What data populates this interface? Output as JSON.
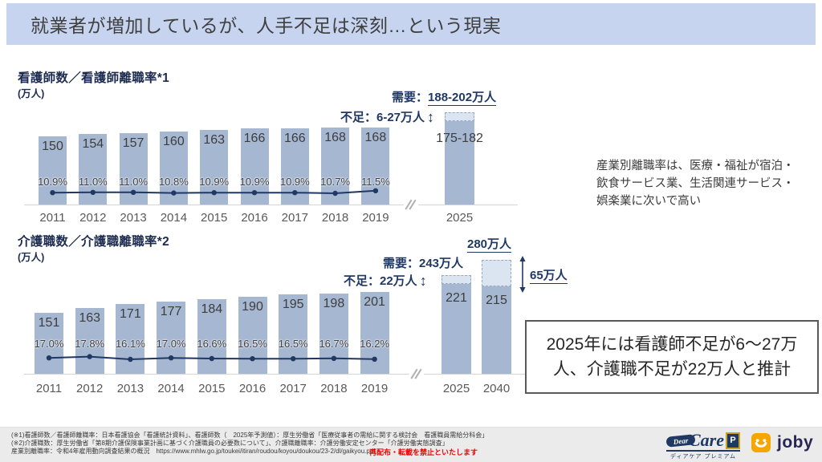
{
  "slide": {
    "title": "就業者が増加しているが、人手不足は深刻…という現実",
    "side_note": "産業別離職率は、医療・福祉が宿泊・\n飲食サービス業、生活関連サービス・\n娯楽業に次いで高い",
    "callout": "2025年には看護師不足が6～27万人、介護職不足が22万人と推計"
  },
  "icons": {
    "updown_arrow": "↕"
  },
  "chart_data": [
    {
      "type": "bar",
      "title": "看護師数／看護師離職率*1",
      "ylabel": "(万人)",
      "categories": [
        "2011",
        "2012",
        "2013",
        "2014",
        "2015",
        "2016",
        "2017",
        "2018",
        "2019"
      ],
      "series": [
        {
          "name": "看護師数(万人)",
          "type": "bar",
          "values": [
            150,
            154,
            157,
            160,
            163,
            166,
            166,
            168,
            168
          ]
        },
        {
          "name": "看護師離職率",
          "type": "line",
          "unit": "%",
          "values": [
            10.9,
            11.0,
            11.0,
            10.8,
            10.9,
            10.9,
            10.9,
            10.7,
            11.5
          ]
        }
      ],
      "rate_labels": [
        "10.9%",
        "11.0%",
        "11.0%",
        "10.8%",
        "10.9%",
        "10.9%",
        "10.9%",
        "10.7%",
        "11.5%"
      ],
      "projection": {
        "category": "2025",
        "bar_label": "175-182",
        "value_range": [
          175,
          182
        ],
        "demand_range": [
          188,
          202
        ]
      },
      "annotations": {
        "demand_prefix": "需要：",
        "demand_value": "188-202万人",
        "shortage": "不足：6-27万人"
      }
    },
    {
      "type": "bar",
      "title": "介護職数／介護職離職率*2",
      "ylabel": "(万人)",
      "categories": [
        "2011",
        "2012",
        "2013",
        "2014",
        "2015",
        "2016",
        "2017",
        "2018",
        "2019"
      ],
      "series": [
        {
          "name": "介護職数(万人)",
          "type": "bar",
          "values": [
            151,
            163,
            171,
            177,
            184,
            190,
            195,
            198,
            201
          ]
        },
        {
          "name": "介護職離職率",
          "type": "line",
          "unit": "%",
          "values": [
            17.0,
            17.8,
            16.1,
            17.0,
            16.6,
            16.5,
            16.5,
            16.7,
            16.2
          ]
        }
      ],
      "rate_labels": [
        "17.0%",
        "17.8%",
        "16.1%",
        "17.0%",
        "16.6%",
        "16.5%",
        "16.5%",
        "16.7%",
        "16.2%"
      ],
      "projections": [
        {
          "category": "2025",
          "value": 221,
          "demand": 243
        },
        {
          "category": "2040",
          "value": 215,
          "demand": 280
        }
      ],
      "annotations": {
        "demand": "需要：243万人",
        "shortage": "不足：22万人",
        "total_2040": "280万人",
        "gap_2040": "65万人"
      }
    }
  ],
  "footer": {
    "line1": "(※1)看護師数／看護師離職率：日本看護協会「看護統計資料」、看護師数（　2025年予測値）：厚生労働省「医療従事者の需給に関する検討会　看護職員需給分科会」",
    "line2": "(※2)介護職数：厚生労働省「第8期介護保険事業計画に基づく介護職員の必要数について」、介護職離職率：介護労働安定センター「介護労働実態調査」",
    "line3": "産業別離職率：令和4年雇用動向調査結果の概況　https://www.mhlw.go.jp/toukei/itiran/roudou/koyou/doukou/23-2/dl/gaikyou.pdf",
    "notice": "再配布・転載を禁止といたします"
  },
  "logos": {
    "dearcare": {
      "dear": "Dear",
      "care": "Care",
      "badge": "P",
      "caption": "ディアケア プレミアム"
    },
    "joby": {
      "text": "joby"
    }
  },
  "colors": {
    "title_band": "#c7d4f0",
    "bar": "#a6b7d2",
    "bar_projection_cap": "#dbe5f1",
    "line": "#203864",
    "navy_text": "#1f3864",
    "notice_red": "#f00000"
  }
}
